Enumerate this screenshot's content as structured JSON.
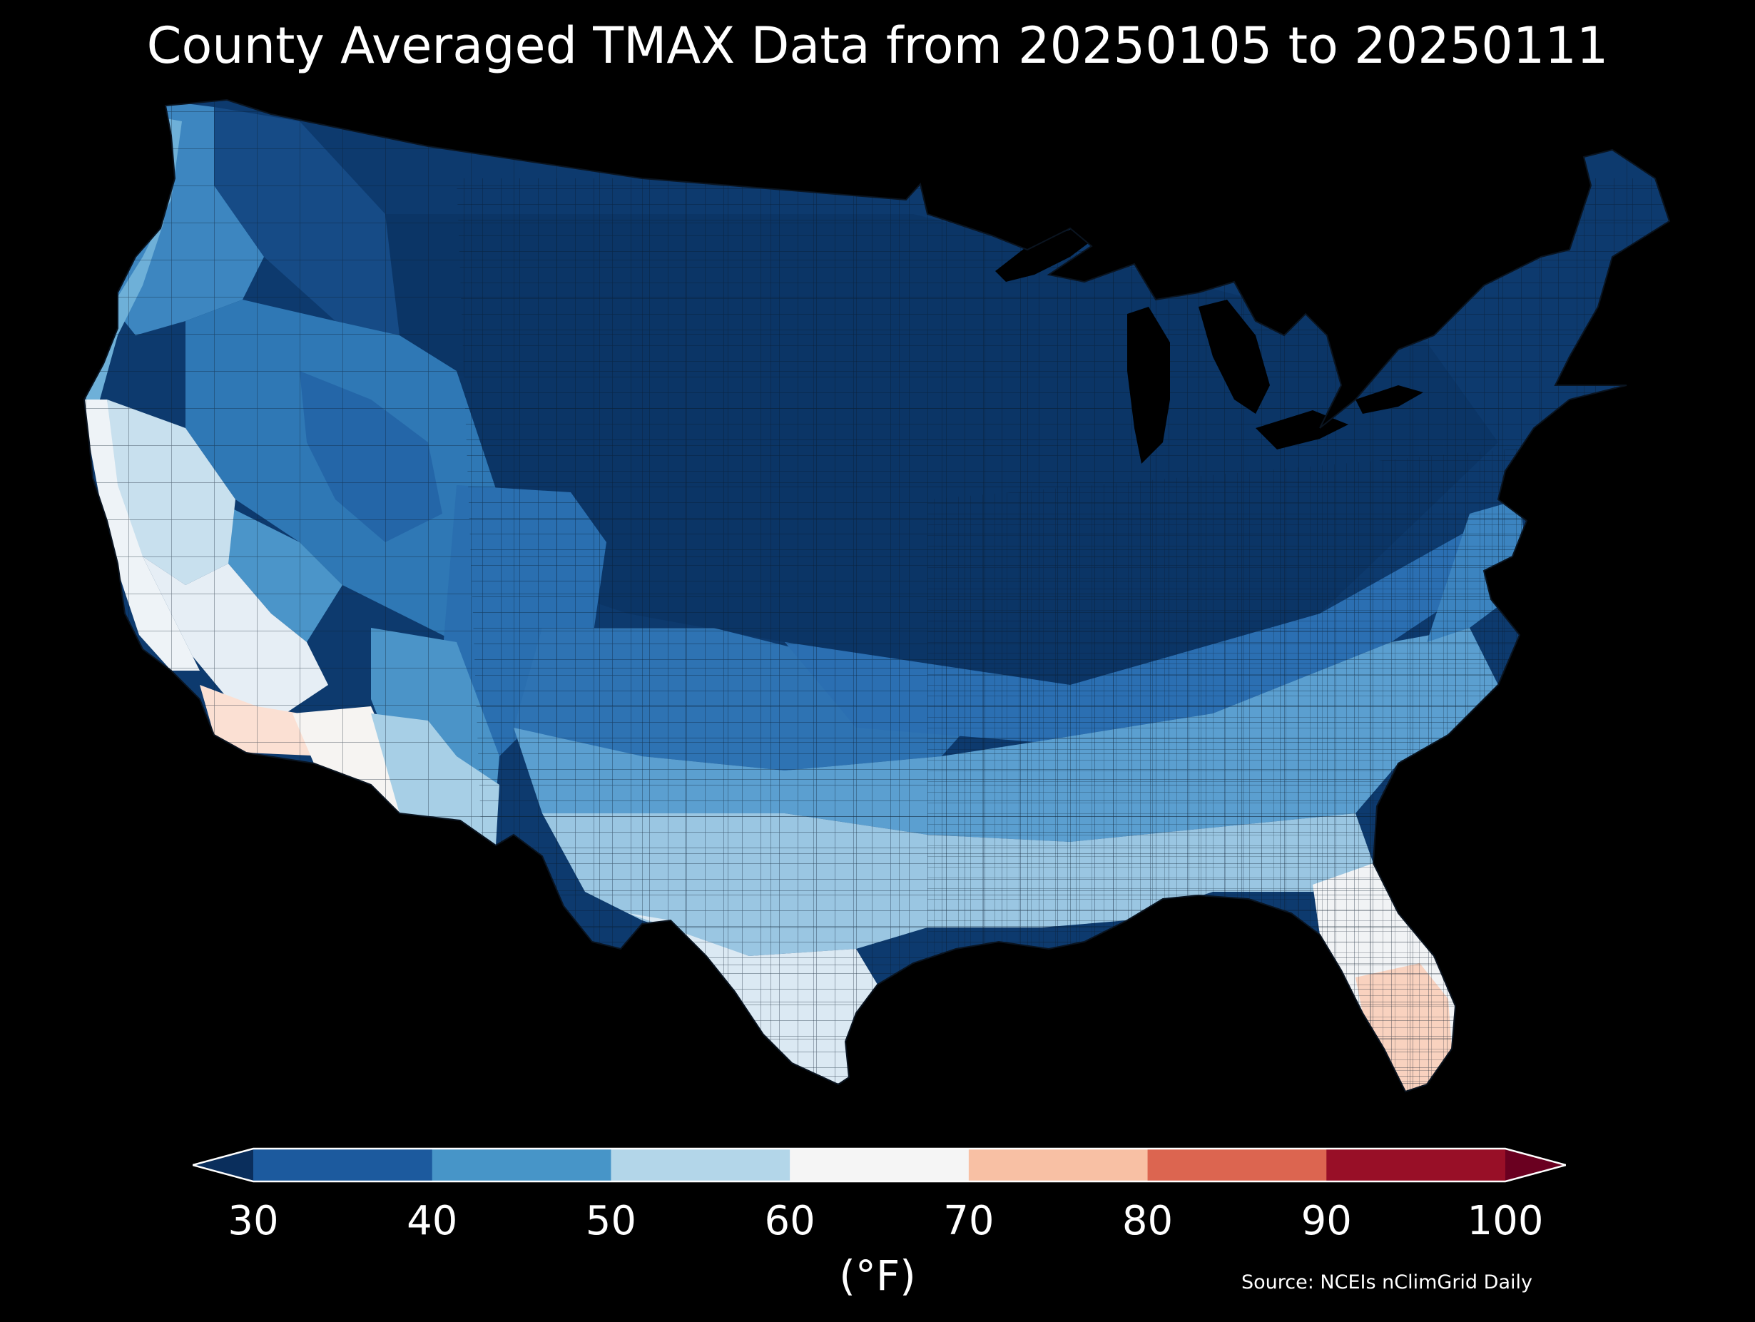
{
  "title": "County Averaged TMAX Data from 20250105 to 20250111",
  "colorbar": {
    "unit_label": "(°F)",
    "ticks": [
      "30",
      "40",
      "50",
      "60",
      "70",
      "80",
      "90",
      "100"
    ],
    "bins": [
      {
        "range": [
          30,
          40
        ],
        "color": "#1c5a9e"
      },
      {
        "range": [
          40,
          50
        ],
        "color": "#4795c8"
      },
      {
        "range": [
          50,
          60
        ],
        "color": "#b3d6e9"
      },
      {
        "range": [
          60,
          70
        ],
        "color": "#f5f5f5"
      },
      {
        "range": [
          70,
          80
        ],
        "color": "#f8c0a4"
      },
      {
        "range": [
          80,
          90
        ],
        "color": "#dc6550"
      },
      {
        "range": [
          90,
          100
        ],
        "color": "#980f27"
      }
    ],
    "under_color": "#0a2e5c",
    "over_color": "#6a0020",
    "extend": "both"
  },
  "source": "Source: NCEIs nClimGrid Daily",
  "map": {
    "region": "Contiguous United States",
    "background": "#000000",
    "county_border_color": "#0b1a2a",
    "regions": [
      {
        "name": "northern-plains-midwest-northeast",
        "approx_tmax_f": 28,
        "color": "#0d3a6e"
      },
      {
        "name": "northern-rockies",
        "approx_tmax_f": 32,
        "color": "#164b86"
      },
      {
        "name": "interior-west",
        "approx_tmax_f": 42,
        "color": "#2f78b5"
      },
      {
        "name": "pacific-northwest-coast",
        "approx_tmax_f": 48,
        "color": "#5aa2d0"
      },
      {
        "name": "southern-plains-tennessee-valley",
        "approx_tmax_f": 45,
        "color": "#3f86c1"
      },
      {
        "name": "gulf-coast-texas",
        "approx_tmax_f": 58,
        "color": "#c5dfee"
      },
      {
        "name": "california-coast",
        "approx_tmax_f": 64,
        "color": "#eef3f7"
      },
      {
        "name": "southern-arizona",
        "approx_tmax_f": 68,
        "color": "#f4f4f4"
      },
      {
        "name": "southern-california-desert",
        "approx_tmax_f": 72,
        "color": "#fbe0d3"
      },
      {
        "name": "south-florida",
        "approx_tmax_f": 74,
        "color": "#f9d2bf"
      }
    ]
  }
}
